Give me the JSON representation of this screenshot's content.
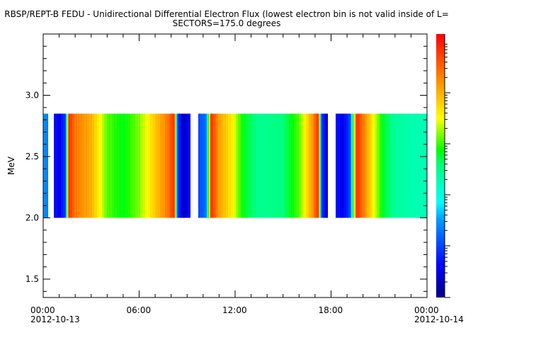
{
  "chart_data": {
    "type": "heatmap",
    "title": "RBSP/REPT-B  FEDU - Unidirectional Differential Electron Flux (lowest electron bin is not valid inside of L=",
    "subtitle": "SECTORS=175.0 degrees",
    "ylabel": "MeV",
    "xlabel": "",
    "ylim": [
      1.35,
      3.5
    ],
    "y_ticks": [
      "1.5",
      "2.0",
      "2.5",
      "3.0"
    ],
    "x_ticks": [
      {
        "time": "00:00",
        "date": "2012-10-13"
      },
      {
        "time": "06:00",
        "date": ""
      },
      {
        "time": "12:00",
        "date": ""
      },
      {
        "time": "18:00",
        "date": ""
      },
      {
        "time": "00:00",
        "date": "2012-10-14"
      }
    ],
    "xlim_hours": [
      0,
      24
    ],
    "energy_band_mev": [
      2.0,
      2.85
    ],
    "colorscale": "rainbow (dark blue low to red high), log scale",
    "relative_flux_profile": [
      [
        0.0,
        0.3
      ],
      [
        0.3,
        0.25
      ],
      [
        0.35,
        null
      ],
      [
        0.6,
        null
      ],
      [
        0.65,
        0.15
      ],
      [
        1.0,
        0.1
      ],
      [
        1.4,
        0.2
      ],
      [
        1.6,
        0.95
      ],
      [
        2.0,
        0.85
      ],
      [
        3.0,
        0.78
      ],
      [
        4.0,
        0.6
      ],
      [
        5.0,
        0.55
      ],
      [
        6.0,
        0.62
      ],
      [
        7.0,
        0.75
      ],
      [
        7.8,
        0.85
      ],
      [
        8.2,
        0.95
      ],
      [
        8.4,
        0.2
      ],
      [
        8.8,
        0.05
      ],
      [
        9.2,
        0.15
      ],
      [
        9.3,
        null
      ],
      [
        9.6,
        null
      ],
      [
        9.7,
        0.2
      ],
      [
        10.2,
        0.25
      ],
      [
        10.5,
        0.95
      ],
      [
        11.0,
        0.8
      ],
      [
        11.8,
        0.7
      ],
      [
        12.5,
        0.55
      ],
      [
        13.5,
        0.48
      ],
      [
        15.0,
        0.5
      ],
      [
        16.0,
        0.6
      ],
      [
        16.8,
        0.8
      ],
      [
        17.2,
        0.95
      ],
      [
        17.4,
        0.2
      ],
      [
        17.8,
        0.05
      ],
      [
        18.0,
        null
      ],
      [
        18.2,
        null
      ],
      [
        18.3,
        0.15
      ],
      [
        18.7,
        0.1
      ],
      [
        19.2,
        0.2
      ],
      [
        19.6,
        0.95
      ],
      [
        20.0,
        0.85
      ],
      [
        20.6,
        0.7
      ],
      [
        21.2,
        0.55
      ],
      [
        22.0,
        0.47
      ],
      [
        23.0,
        0.45
      ],
      [
        24.0,
        0.44
      ]
    ]
  }
}
